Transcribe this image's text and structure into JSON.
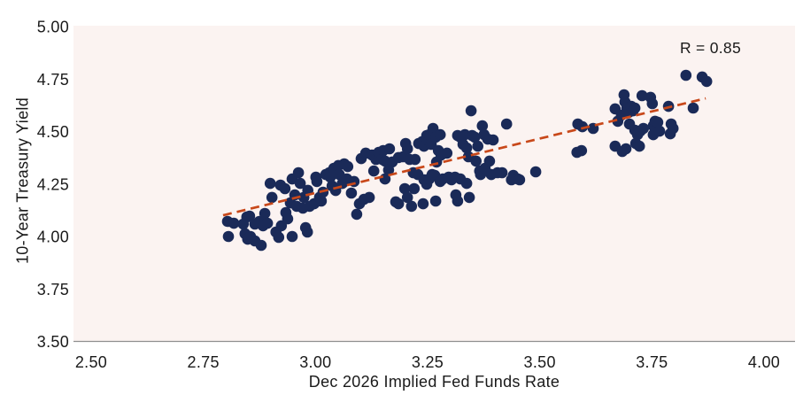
{
  "figure": {
    "r_annotation": "R = 0.85",
    "x_axis_title": "Dec 2026 Implied Fed Funds Rate",
    "y_axis_title": "10-Year Treasury Yield",
    "x_tick_labels": [
      "2.50",
      "2.75",
      "3.00",
      "3.25",
      "3.50",
      "3.75",
      "4.00"
    ],
    "y_tick_labels": [
      "5.00",
      "4.75",
      "4.50",
      "4.25",
      "4.00",
      "3.75",
      "3.50"
    ],
    "colors": {
      "point": "#1A2A58",
      "trend_line": "#C8481A",
      "plot_background": "#FBF3F1",
      "axis_line": "#8F8F8F",
      "label_text": "#1A1A1A"
    }
  },
  "chart_data": {
    "type": "scatter",
    "title": "",
    "xlabel": "Dec 2026 Implied Fed Funds Rate",
    "ylabel": "10-Year Treasury Yield",
    "xlim": [
      2.5,
      4.0
    ],
    "ylim": [
      3.5,
      5.0
    ],
    "x_ticks": [
      2.5,
      2.75,
      3.0,
      3.25,
      3.5,
      3.75,
      4.0
    ],
    "y_ticks": [
      3.5,
      3.75,
      4.0,
      4.25,
      4.5,
      4.75,
      5.0
    ],
    "grid": false,
    "legend": "none",
    "annotation": {
      "text": "R = 0.85",
      "position": "top-right"
    },
    "trend_line": {
      "style": "dashed",
      "x_start": 2.794,
      "y_start": 4.103,
      "x_end": 3.87,
      "y_end": 4.66
    },
    "points": [
      [
        2.804,
        4.074
      ],
      [
        2.806,
        4.002
      ],
      [
        2.818,
        4.065
      ],
      [
        2.839,
        4.061
      ],
      [
        2.843,
        4.015
      ],
      [
        2.847,
        4.095
      ],
      [
        2.853,
        4.099
      ],
      [
        2.865,
        4.061
      ],
      [
        2.855,
        4.002
      ],
      [
        2.865,
        3.981
      ],
      [
        2.879,
        3.96
      ],
      [
        2.849,
        3.989
      ],
      [
        2.875,
        4.074
      ],
      [
        2.883,
        4.053
      ],
      [
        2.887,
        4.112
      ],
      [
        2.893,
        4.065
      ],
      [
        2.899,
        4.255
      ],
      [
        2.903,
        4.188
      ],
      [
        2.912,
        4.023
      ],
      [
        2.922,
        4.247
      ],
      [
        2.924,
        4.053
      ],
      [
        2.932,
        4.23
      ],
      [
        2.934,
        4.116
      ],
      [
        2.938,
        4.086
      ],
      [
        2.944,
        4.162
      ],
      [
        2.948,
        4.276
      ],
      [
        2.954,
        4.2
      ],
      [
        2.958,
        4.146
      ],
      [
        2.962,
        4.306
      ],
      [
        2.966,
        4.255
      ],
      [
        2.972,
        4.137
      ],
      [
        2.974,
        4.188
      ],
      [
        2.978,
        4.044
      ],
      [
        2.982,
        4.023
      ],
      [
        2.948,
        4.002
      ],
      [
        2.918,
        3.998
      ],
      [
        2.983,
        4.222
      ],
      [
        2.987,
        4.146
      ],
      [
        2.997,
        4.158
      ],
      [
        3.001,
        4.285
      ],
      [
        3.003,
        4.264
      ],
      [
        3.009,
        4.188
      ],
      [
        3.013,
        4.171
      ],
      [
        3.017,
        4.213
      ],
      [
        3.023,
        4.297
      ],
      [
        3.031,
        4.306
      ],
      [
        3.033,
        4.285
      ],
      [
        3.037,
        4.243
      ],
      [
        3.041,
        4.327
      ],
      [
        3.045,
        4.221
      ],
      [
        3.051,
        4.34
      ],
      [
        3.053,
        4.297
      ],
      [
        3.06,
        4.255
      ],
      [
        3.064,
        4.348
      ],
      [
        3.07,
        4.276
      ],
      [
        3.072,
        4.335
      ],
      [
        3.08,
        4.209
      ],
      [
        3.086,
        4.264
      ],
      [
        3.092,
        4.108
      ],
      [
        3.098,
        4.158
      ],
      [
        3.102,
        4.373
      ],
      [
        3.108,
        4.179
      ],
      [
        3.112,
        4.399
      ],
      [
        3.12,
        4.188
      ],
      [
        3.126,
        4.39
      ],
      [
        3.13,
        4.314
      ],
      [
        3.135,
        4.369
      ],
      [
        3.141,
        4.403
      ],
      [
        3.149,
        4.369
      ],
      [
        3.155,
        4.276
      ],
      [
        3.151,
        4.411
      ],
      [
        3.155,
        4.361
      ],
      [
        3.165,
        4.42
      ],
      [
        3.171,
        4.357
      ],
      [
        3.163,
        4.319
      ],
      [
        3.185,
        4.378
      ],
      [
        3.195,
        4.382
      ],
      [
        3.201,
        4.445
      ],
      [
        3.205,
        4.42
      ],
      [
        3.21,
        4.369
      ],
      [
        3.218,
        4.306
      ],
      [
        3.222,
        4.369
      ],
      [
        3.228,
        4.297
      ],
      [
        3.23,
        4.445
      ],
      [
        3.238,
        4.454
      ],
      [
        3.242,
        4.432
      ],
      [
        3.248,
        4.483
      ],
      [
        3.25,
        4.462
      ],
      [
        3.254,
        4.487
      ],
      [
        3.258,
        4.441
      ],
      [
        3.262,
        4.517
      ],
      [
        3.268,
        4.475
      ],
      [
        3.27,
        4.357
      ],
      [
        3.274,
        4.411
      ],
      [
        3.278,
        4.487
      ],
      [
        3.28,
        4.39
      ],
      [
        3.242,
        4.272
      ],
      [
        3.248,
        4.251
      ],
      [
        3.254,
        4.276
      ],
      [
        3.26,
        4.297
      ],
      [
        3.266,
        4.293
      ],
      [
        3.199,
        4.23
      ],
      [
        3.205,
        4.188
      ],
      [
        3.22,
        4.23
      ],
      [
        3.185,
        4.158
      ],
      [
        3.179,
        4.167
      ],
      [
        3.214,
        4.146
      ],
      [
        3.24,
        4.158
      ],
      [
        3.268,
        4.171
      ],
      [
        3.278,
        4.264
      ],
      [
        3.284,
        4.276
      ],
      [
        3.293,
        4.399
      ],
      [
        3.297,
        4.285
      ],
      [
        3.303,
        4.272
      ],
      [
        3.311,
        4.285
      ],
      [
        3.317,
        4.483
      ],
      [
        3.323,
        4.475
      ],
      [
        3.329,
        4.441
      ],
      [
        3.333,
        4.487
      ],
      [
        3.337,
        4.424
      ],
      [
        3.341,
        4.382
      ],
      [
        3.347,
        4.601
      ],
      [
        3.349,
        4.483
      ],
      [
        3.355,
        4.475
      ],
      [
        3.358,
        4.361
      ],
      [
        3.362,
        4.432
      ],
      [
        3.366,
        4.314
      ],
      [
        3.368,
        4.297
      ],
      [
        3.372,
        4.529
      ],
      [
        3.376,
        4.487
      ],
      [
        3.378,
        4.327
      ],
      [
        3.384,
        4.466
      ],
      [
        3.388,
        4.361
      ],
      [
        3.392,
        4.297
      ],
      [
        3.396,
        4.462
      ],
      [
        3.313,
        4.2
      ],
      [
        3.337,
        4.255
      ],
      [
        3.343,
        4.188
      ],
      [
        3.317,
        4.171
      ],
      [
        3.323,
        4.276
      ],
      [
        3.426,
        4.538
      ],
      [
        3.416,
        4.306
      ],
      [
        3.441,
        4.293
      ],
      [
        3.451,
        4.276
      ],
      [
        3.491,
        4.31
      ],
      [
        3.406,
        4.306
      ],
      [
        3.437,
        4.272
      ],
      [
        3.455,
        4.272
      ],
      [
        3.585,
        4.538
      ],
      [
        3.595,
        4.525
      ],
      [
        3.619,
        4.517
      ],
      [
        3.593,
        4.411
      ],
      [
        3.583,
        4.403
      ],
      [
        3.668,
        4.61
      ],
      [
        3.674,
        4.551
      ],
      [
        3.682,
        4.58
      ],
      [
        3.688,
        4.677
      ],
      [
        3.69,
        4.643
      ],
      [
        3.694,
        4.614
      ],
      [
        3.698,
        4.593
      ],
      [
        3.704,
        4.622
      ],
      [
        3.708,
        4.601
      ],
      [
        3.712,
        4.614
      ],
      [
        3.7,
        4.538
      ],
      [
        3.712,
        4.508
      ],
      [
        3.718,
        4.487
      ],
      [
        3.724,
        4.504
      ],
      [
        3.728,
        4.673
      ],
      [
        3.731,
        4.517
      ],
      [
        3.747,
        4.665
      ],
      [
        3.751,
        4.635
      ],
      [
        3.753,
        4.529
      ],
      [
        3.757,
        4.551
      ],
      [
        3.763,
        4.546
      ],
      [
        3.753,
        4.487
      ],
      [
        3.767,
        4.504
      ],
      [
        3.787,
        4.622
      ],
      [
        3.793,
        4.538
      ],
      [
        3.797,
        4.517
      ],
      [
        3.791,
        4.491
      ],
      [
        3.826,
        4.77
      ],
      [
        3.862,
        4.762
      ],
      [
        3.872,
        4.741
      ],
      [
        3.842,
        4.614
      ],
      [
        3.668,
        4.432
      ],
      [
        3.692,
        4.42
      ],
      [
        3.714,
        4.445
      ],
      [
        3.722,
        4.432
      ],
      [
        3.684,
        4.407
      ]
    ]
  }
}
